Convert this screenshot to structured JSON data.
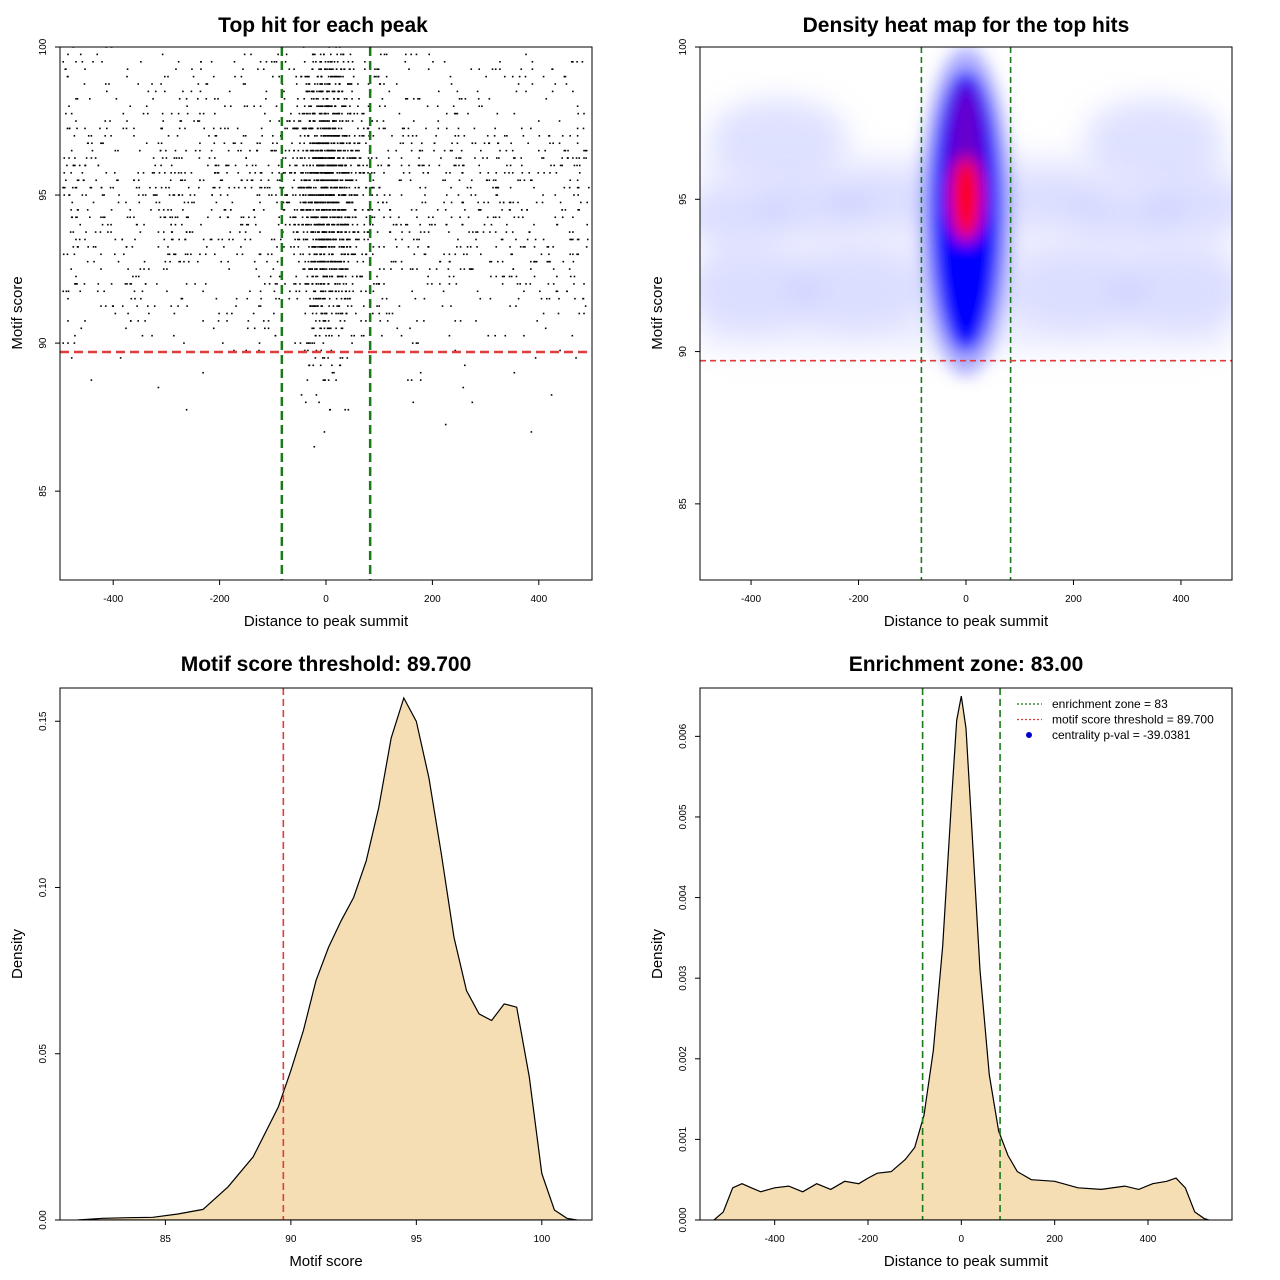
{
  "chart_data": [
    {
      "type": "scatter",
      "title": "Top hit for each peak",
      "xlabel": "Distance to peak summit",
      "ylabel": "Motif score",
      "xlim": [
        -500,
        500
      ],
      "ylim": [
        82,
        100
      ],
      "xticks": [
        -400,
        -200,
        0,
        200,
        400
      ],
      "yticks": [
        85,
        90,
        95,
        100
      ],
      "hlines": [
        {
          "y": 89.7,
          "color": "#e03c3c",
          "style": "dashed"
        }
      ],
      "vlines": [
        {
          "x": -83,
          "color": "#1a7a1a",
          "style": "dashed"
        },
        {
          "x": 83,
          "color": "#1a7a1a",
          "style": "dashed"
        }
      ],
      "distribution": {
        "center_x": 0,
        "center_sd": 30,
        "mode_score": 95,
        "min_score": 82.5,
        "max_score": 100
      }
    },
    {
      "type": "heatmap",
      "title": "Density heat map for the top hits",
      "xlabel": "Distance to peak summit",
      "ylabel": "Motif score",
      "xlim": [
        -495,
        495
      ],
      "ylim": [
        82.5,
        100
      ],
      "xticks": [
        -400,
        -200,
        0,
        200,
        400
      ],
      "yticks": [
        85,
        90,
        95,
        100
      ],
      "hlines": [
        {
          "y": 89.7,
          "color": "#e03c3c",
          "style": "dashed"
        }
      ],
      "vlines": [
        {
          "x": -83,
          "color": "#1a7a1a",
          "style": "dashed"
        },
        {
          "x": 83,
          "color": "#1a7a1a",
          "style": "dashed"
        }
      ],
      "peak": {
        "x": 0,
        "y": 95
      }
    },
    {
      "type": "area",
      "title": "Motif score threshold: 89.700",
      "xlabel": "Motif score",
      "ylabel": "Density",
      "xlim": [
        80.8,
        102.0
      ],
      "ylim": [
        0,
        0.16
      ],
      "xticks": [
        85,
        90,
        95,
        100
      ],
      "yticks": [
        0.0,
        0.05,
        0.1,
        0.15
      ],
      "ytick_labels": [
        "0.00",
        "0.05",
        "0.10",
        "0.15"
      ],
      "fill": "#f5deb3",
      "vlines": [
        {
          "x": 89.7,
          "color": "#e03c3c",
          "style": "dashed"
        }
      ],
      "x": [
        81.5,
        82.5,
        83.5,
        84.5,
        85.5,
        86.5,
        87.5,
        88.5,
        89.5,
        90.0,
        90.5,
        91.0,
        91.5,
        92.0,
        92.5,
        93.0,
        93.5,
        94.0,
        94.5,
        95.0,
        95.5,
        96.0,
        96.5,
        97.0,
        97.5,
        98.0,
        98.5,
        99.0,
        99.5,
        100.0,
        100.5,
        101.0,
        101.4
      ],
      "y": [
        0.0,
        0.0005,
        0.0007,
        0.0008,
        0.0018,
        0.0032,
        0.01,
        0.019,
        0.034,
        0.045,
        0.057,
        0.072,
        0.082,
        0.09,
        0.097,
        0.108,
        0.124,
        0.145,
        0.157,
        0.15,
        0.133,
        0.11,
        0.085,
        0.069,
        0.062,
        0.06,
        0.065,
        0.064,
        0.043,
        0.014,
        0.003,
        0.0005,
        0.0
      ]
    },
    {
      "type": "area",
      "title": "Enrichment zone: 83.00",
      "xlabel": "Distance to peak summit",
      "ylabel": "Density",
      "xlim": [
        -560,
        580
      ],
      "ylim": [
        0,
        0.0066
      ],
      "xticks": [
        -400,
        -200,
        0,
        200,
        400
      ],
      "yticks": [
        0.0,
        0.001,
        0.002,
        0.003,
        0.004,
        0.005,
        0.006
      ],
      "ytick_labels": [
        "0.000",
        "0.001",
        "0.002",
        "0.003",
        "0.004",
        "0.005",
        "0.006"
      ],
      "fill": "#f5deb3",
      "vlines": [
        {
          "x": -83,
          "color": "#1a7a1a",
          "style": "dashed"
        },
        {
          "x": 83,
          "color": "#1a7a1a",
          "style": "dashed"
        }
      ],
      "x": [
        -530,
        -510,
        -490,
        -470,
        -450,
        -430,
        -400,
        -370,
        -340,
        -310,
        -280,
        -250,
        -220,
        -200,
        -180,
        -150,
        -120,
        -100,
        -80,
        -60,
        -40,
        -20,
        -10,
        0,
        10,
        20,
        40,
        60,
        80,
        100,
        120,
        150,
        200,
        250,
        300,
        350,
        380,
        410,
        440,
        460,
        480,
        500,
        520,
        530
      ],
      "y": [
        0.0,
        0.0001,
        0.0004,
        0.00045,
        0.0004,
        0.00035,
        0.0004,
        0.00042,
        0.00035,
        0.00045,
        0.00038,
        0.00048,
        0.00045,
        0.00052,
        0.00058,
        0.0006,
        0.00075,
        0.0009,
        0.0013,
        0.0021,
        0.0034,
        0.0053,
        0.0062,
        0.0065,
        0.0061,
        0.0051,
        0.0031,
        0.0018,
        0.0011,
        0.0008,
        0.0006,
        0.0005,
        0.00048,
        0.0004,
        0.00038,
        0.00042,
        0.00038,
        0.00045,
        0.00048,
        0.00052,
        0.0004,
        0.0001,
        2e-05,
        0.0
      ],
      "legend": {
        "position": "top-right",
        "entries": [
          {
            "label": "enrichment zone = 83",
            "color": "#1a7a1a",
            "marker": "dotted-line"
          },
          {
            "label": "motif score threshold = 89.700",
            "color": "#e03c3c",
            "marker": "dotted-line"
          },
          {
            "label": "centrality p-val = -39.0381",
            "color": "#0000cc",
            "marker": "point"
          }
        ]
      }
    }
  ]
}
